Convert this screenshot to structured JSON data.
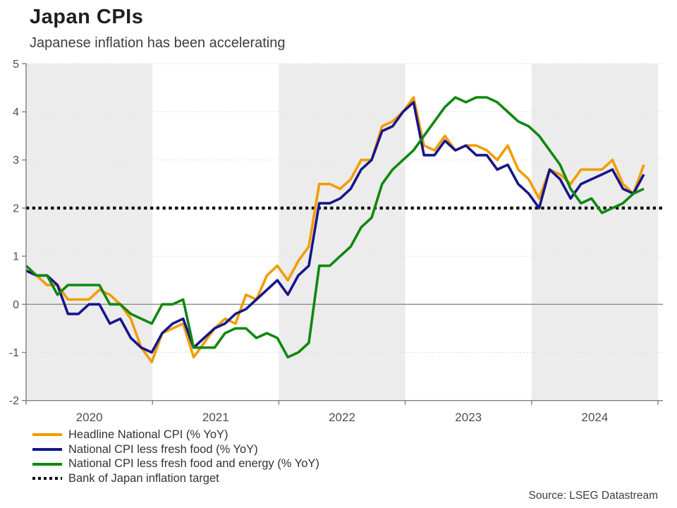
{
  "header": {
    "title": "Japan CPIs",
    "subtitle": "Japanese inflation has been accelerating"
  },
  "source": "Source: LSEG Datastream",
  "chart_data": {
    "type": "line",
    "title": "Japan CPIs",
    "subtitle": "Japanese inflation has been accelerating",
    "x_unit": "month",
    "x_start": "2019-12",
    "x_end": "2024-11",
    "x_year_labels": [
      "2020",
      "2021",
      "2022",
      "2023",
      "2024"
    ],
    "y_ticks": [
      "-2",
      "-1",
      "0",
      "1",
      "2",
      "3",
      "4",
      "5"
    ],
    "ylim": [
      -2,
      5
    ],
    "grid": "horizontal-dashed",
    "legend_position": "bottom-left",
    "band_color": "#ececec",
    "axis_color": "#808080",
    "zero_line_color": "#8c8c8c",
    "gridline_color": "#dcdcdc",
    "target_line": {
      "label": "Bank of Japan inflation target",
      "value": 2,
      "color": "#000000",
      "style": "dotted"
    },
    "series": [
      {
        "name": "Headline National CPI (% YoY)",
        "color": "#F39C00",
        "values": [
          0.7,
          0.6,
          0.4,
          0.4,
          0.1,
          0.1,
          0.1,
          0.3,
          0.2,
          0.0,
          -0.3,
          -0.9,
          -1.2,
          -0.6,
          -0.5,
          -0.4,
          -1.1,
          -0.8,
          -0.5,
          -0.3,
          -0.4,
          0.2,
          0.1,
          0.6,
          0.8,
          0.5,
          0.9,
          1.2,
          2.5,
          2.5,
          2.4,
          2.6,
          3.0,
          3.0,
          3.7,
          3.8,
          4.0,
          4.3,
          3.3,
          3.2,
          3.5,
          3.2,
          3.3,
          3.3,
          3.2,
          3.0,
          3.3,
          2.8,
          2.6,
          2.2,
          2.8,
          2.7,
          2.5,
          2.8,
          2.8,
          2.8,
          3.0,
          2.5,
          2.3,
          2.9
        ]
      },
      {
        "name": "National CPI less fresh food (% YoY)",
        "color": "#16168C",
        "values": [
          0.7,
          0.6,
          0.6,
          0.4,
          -0.2,
          -0.2,
          0.0,
          0.0,
          -0.4,
          -0.3,
          -0.7,
          -0.9,
          -1.0,
          -0.6,
          -0.4,
          -0.3,
          -0.9,
          -0.7,
          -0.5,
          -0.4,
          -0.2,
          -0.1,
          0.1,
          0.3,
          0.5,
          0.2,
          0.6,
          0.8,
          2.1,
          2.1,
          2.2,
          2.4,
          2.8,
          3.0,
          3.6,
          3.7,
          4.0,
          4.2,
          3.1,
          3.1,
          3.4,
          3.2,
          3.3,
          3.1,
          3.1,
          2.8,
          2.9,
          2.5,
          2.3,
          2.0,
          2.8,
          2.6,
          2.2,
          2.5,
          2.6,
          2.7,
          2.8,
          2.4,
          2.3,
          2.7
        ]
      },
      {
        "name": "National CPI less fresh food and energy (% YoY)",
        "color": "#0F880F",
        "values": [
          0.8,
          0.6,
          0.6,
          0.2,
          0.4,
          0.4,
          0.4,
          0.4,
          0.0,
          0.0,
          -0.2,
          -0.3,
          -0.4,
          0.0,
          0.0,
          0.1,
          -0.9,
          -0.9,
          -0.9,
          -0.6,
          -0.5,
          -0.5,
          -0.7,
          -0.6,
          -0.7,
          -1.1,
          -1.0,
          -0.8,
          0.8,
          0.8,
          1.0,
          1.2,
          1.6,
          1.8,
          2.5,
          2.8,
          3.0,
          3.2,
          3.5,
          3.8,
          4.1,
          4.3,
          4.2,
          4.3,
          4.3,
          4.2,
          4.0,
          3.8,
          3.7,
          3.5,
          3.2,
          2.9,
          2.4,
          2.1,
          2.2,
          1.9,
          2.0,
          2.1,
          2.3,
          2.4
        ]
      }
    ]
  }
}
